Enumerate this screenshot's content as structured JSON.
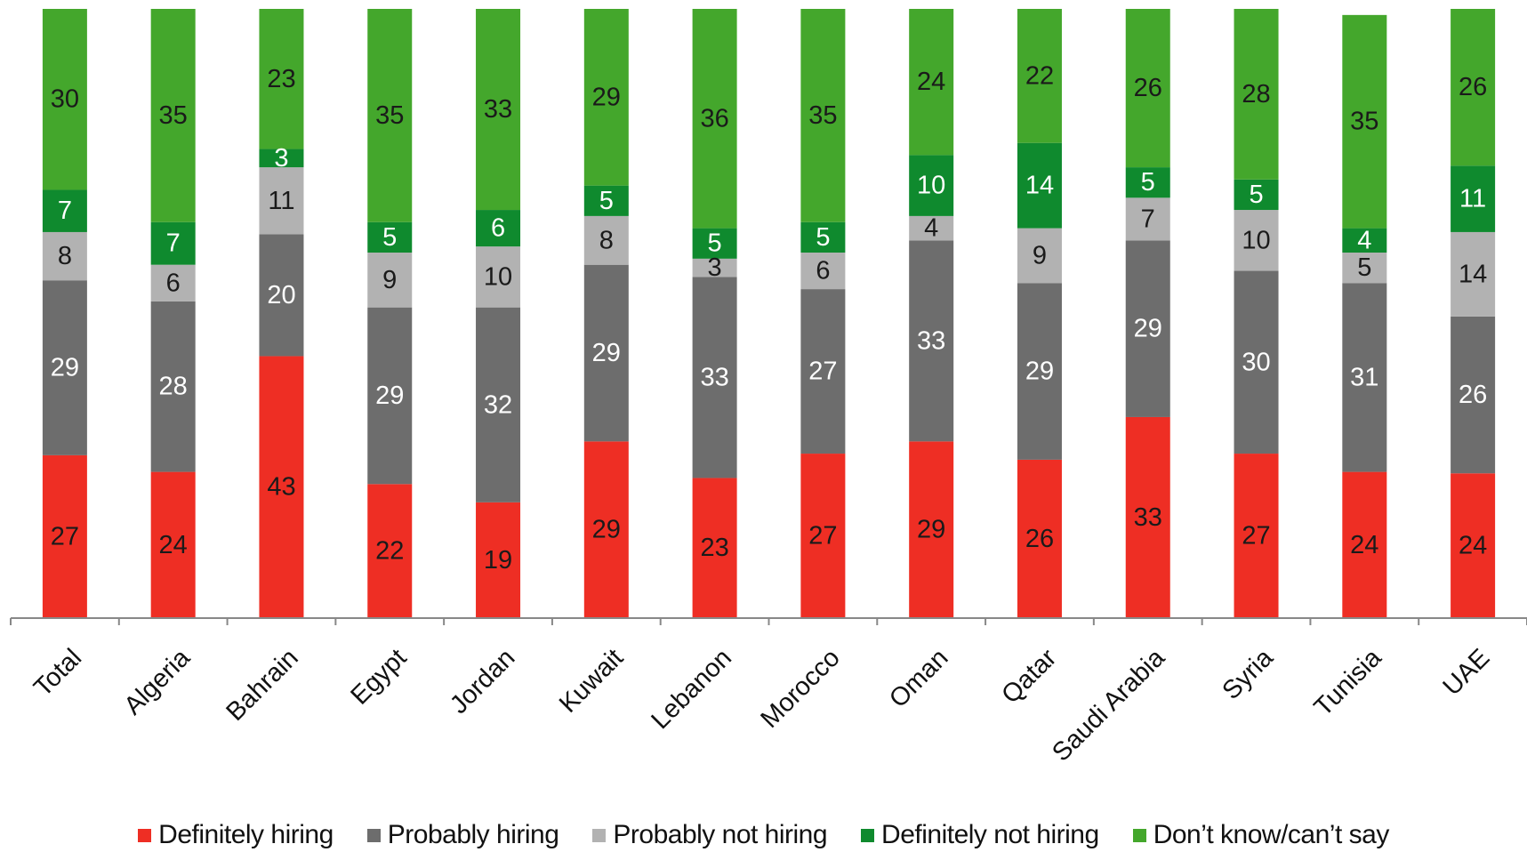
{
  "chart_data": {
    "type": "bar",
    "stacked": true,
    "categories": [
      "Total",
      "Algeria",
      "Bahrain",
      "Egypt",
      "Jordan",
      "Kuwait",
      "Lebanon",
      "Morocco",
      "Oman",
      "Qatar",
      "Saudi Arabia",
      "Syria",
      "Tunisia",
      "UAE"
    ],
    "series": [
      {
        "name": "Definitely hiring",
        "color": "#ee2e24",
        "label_color": "#1a1a1a",
        "values": [
          27,
          24,
          43,
          22,
          19,
          29,
          23,
          27,
          29,
          26,
          33,
          27,
          24,
          24
        ]
      },
      {
        "name": "Probably hiring",
        "color": "#6d6d6d",
        "label_color": "#ffffff",
        "values": [
          29,
          28,
          20,
          29,
          32,
          29,
          33,
          27,
          33,
          29,
          29,
          30,
          31,
          26
        ]
      },
      {
        "name": "Probably not hiring",
        "color": "#b2b2b2",
        "label_color": "#1a1a1a",
        "values": [
          8,
          6,
          11,
          9,
          10,
          8,
          3,
          6,
          4,
          9,
          7,
          10,
          5,
          14
        ]
      },
      {
        "name": "Definitely not hiring",
        "color": "#0f8a2e",
        "label_color": "#ffffff",
        "values": [
          7,
          7,
          3,
          5,
          6,
          5,
          5,
          5,
          10,
          14,
          5,
          5,
          4,
          11
        ]
      },
      {
        "name": "Don't know/can't say",
        "color": "#44a72c",
        "label_color": "#1a1a1a",
        "values": [
          30,
          35,
          23,
          35,
          33,
          29,
          36,
          35,
          24,
          22,
          26,
          28,
          35,
          26
        ]
      }
    ],
    "legend_labels": [
      "Definitely hiring",
      "Probably hiring",
      "Probably not hiring",
      "Definitely not hiring",
      "Don’t know/can’t say"
    ],
    "ylim": [
      0,
      100
    ],
    "grid": false,
    "legend_position": "bottom",
    "title": "",
    "xlabel": "",
    "ylabel": ""
  }
}
